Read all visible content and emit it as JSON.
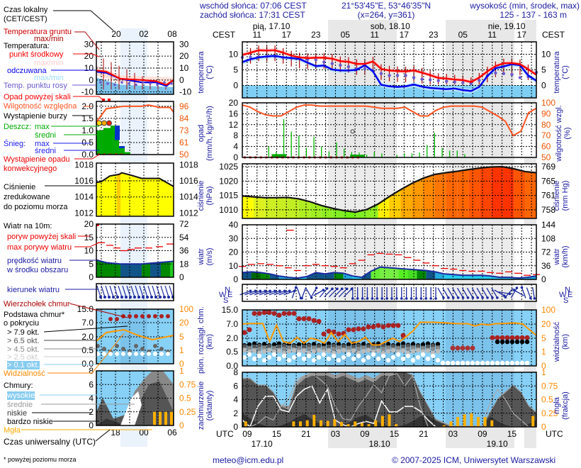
{
  "header": {
    "sunrise": "wschód słońca: 07:06 CEST",
    "sunset": "zachód słońca: 17:31 CEST",
    "coords": "21°53'45\"E, 53°46'35\"N",
    "grid": "(x=264,  y=361)",
    "elev_label": "wysokość (min, środek, max)",
    "elev_values": "125 - 137 - 163 m"
  },
  "time_axis": {
    "local_label": "CEST",
    "utc_label": "UTC",
    "days_local": [
      "pią, 17.10",
      "sob, 18.10",
      "nie, 19.10"
    ],
    "local_ticks": [
      "11",
      "17",
      "23",
      "05",
      "11",
      "17",
      "23",
      "05",
      "11",
      "17"
    ],
    "utc_ticks": [
      "09",
      "15",
      "21",
      "03",
      "09",
      "15",
      "21",
      "03",
      "09",
      "15"
    ],
    "days_utc": [
      "17.10",
      "18.10",
      "19.10"
    ]
  },
  "legend": {
    "local_time": "Czas lokalny",
    "local_time2": "(CET/CEST)",
    "local_ticks": [
      "20",
      "02",
      "08"
    ],
    "ground_temp": "Temperatura gruntu",
    "ground_temp2": "max/min",
    "temperature": "Temperatura:",
    "midpoint": "punkt środkowy",
    "maxmin1": "max/min",
    "felt": "odczuwana",
    "maxmin2": "max/min",
    "dewpoint": "Temp. punktu rosy",
    "temp_ticks": [
      "30",
      "20",
      "10",
      "0",
      "-10"
    ],
    "precip_over": "Opad powyżej skali",
    "humidity": "Wilgotność względna",
    "storm": "Wystąpienie burzy",
    "rain": "Deszcz:",
    "rain_max": "max",
    "rain_avg": "średni",
    "snow": "Śnieg:",
    "snow_max": "max",
    "snow_avg": "średni",
    "convective": "Wystąpienie opadu",
    "convective2": "konwekcyjnego",
    "precip_ticks": [
      "2.0",
      "1.5",
      "1.0",
      "0.5",
      "0.0"
    ],
    "humid_ticks": [
      "96",
      "84",
      "73",
      "61",
      "50"
    ],
    "pressure": "Ciśnienie",
    "pressure2": "zredukowane",
    "pressure3": "do poziomu morza",
    "press_ticks": [
      "1018",
      "1016",
      "1014",
      "1012"
    ],
    "wind": "Wiatr na 10m:",
    "gust_over": "poryw powyżej skali",
    "gust_max": "max porywy wiatru",
    "wind_speed": "prędkość wiatru",
    "wind_speed2": "w środku obszaru",
    "wind_ticks": [
      "20",
      "15",
      "10",
      "5",
      "0"
    ],
    "wind_kmh_ticks": [
      "72",
      "54",
      "36",
      "18",
      "0"
    ],
    "wind_dir": "kierunek wiatru",
    "cloud_top": "Wierzchołek chmur",
    "cloud_base": "Podstawa chmur*",
    "cloud_base2": "o pokryciu",
    "okt": [
      "> 7.9 okt.",
      "> 6.5 okt.",
      "> 4.5 okt.",
      "> 2.5 okt.",
      "> 0.1 okt."
    ],
    "cloud_ticks": [
      "15.0",
      "7.0",
      "2.0",
      "0.5",
      "0.0"
    ],
    "vis_ticks": [
      "100",
      "20",
      "5",
      "1",
      "0"
    ],
    "visibility": "Widzialność",
    "clouds": "Chmury:",
    "high": "wysokie",
    "mid": "średnie",
    "low": "niskie",
    "vlow": "bardzo niskie",
    "fog": "Mgła",
    "cc_ticks": [
      "8",
      "6",
      "4",
      "2",
      "0"
    ],
    "fog_ticks": [
      "1",
      "0.75",
      "0.5",
      "0.25",
      "0"
    ],
    "utc_label": "Czas uniwersalny (UTC)",
    "utc_ticks": [
      "18",
      "00",
      "06"
    ],
    "footnote": "* powyżej poziomu morza"
  },
  "panels": {
    "temp": {
      "ylabel": "temperatura",
      "unit": "(°C)",
      "ticks": [
        "10",
        "5",
        "0"
      ],
      "right_ticks": [
        "10",
        "5",
        "0"
      ]
    },
    "precip": {
      "ylabel": "opad",
      "unit": "(mm/h, kg/m²/h)",
      "ticks": [
        "20",
        "16",
        "12",
        "8",
        "4",
        "0"
      ],
      "right_label": "wilgotność wzgl.",
      "right_unit": "(%)",
      "right_ticks": [
        "100",
        "90",
        "80",
        "70",
        "60",
        "50"
      ]
    },
    "pressure": {
      "ylabel": "ciśnienie",
      "unit": "(hPa)",
      "ticks": [
        "1025",
        "1020",
        "1015",
        "1010"
      ],
      "right_label": "ciśnienie",
      "right_unit": "(mm Hg)",
      "right_ticks": [
        "769",
        "765",
        "761",
        "758"
      ]
    },
    "wind": {
      "ylabel": "wiatr",
      "unit": "(m/s)",
      "ticks": [
        "40",
        "30",
        "20",
        "10",
        "0"
      ],
      "right_label": "wiatr",
      "right_unit": "(km/h)",
      "right_ticks": [
        "144",
        "108",
        "72",
        "36",
        "0"
      ]
    },
    "winddir": {
      "compass": [
        "N",
        "W",
        "E",
        "S"
      ]
    },
    "cloud": {
      "ylabel": "pion. rozciągł. chm.",
      "unit": "(km)",
      "ticks": [
        "15.0",
        "7.0",
        "2.0",
        "0.5",
        "0.0"
      ],
      "right_label": "widzialność",
      "right_unit": "(km)",
      "right_ticks": [
        "100",
        "20",
        "5",
        "1",
        "0"
      ]
    },
    "cover": {
      "ylabel": "zachmurzenie",
      "unit": "(oktanty)",
      "ticks": [
        "8",
        "6",
        "4",
        "2",
        "0"
      ],
      "right_label": "mgła",
      "right_unit": "(frakcja)",
      "right_ticks": [
        "1",
        "0.75",
        "0.5",
        "0.25",
        "0"
      ]
    }
  },
  "footer": {
    "email": "meteo@icm.edu.pl",
    "copyright": "© 2007-2025 ICM, Uniwersytet Warszawski"
  },
  "chart_data": [
    {
      "type": "line",
      "title": "temperatura (°C)",
      "x_hours_utc_from": "2025-10-17 06",
      "ylim": [
        -4,
        14
      ],
      "series": [
        {
          "name": "temperatura",
          "color": "#ff0000",
          "values": [
            9.8,
            10.5,
            11.3,
            11.2,
            11.3,
            10.5,
            9.6,
            9.0,
            8.8,
            8.9,
            8.9,
            8.6,
            7.8,
            7.6,
            6.9,
            6.9,
            7.7,
            5.3,
            4.8,
            4.6,
            4.5,
            4.8,
            4.1,
            3.3,
            2.4,
            2.2,
            1.9,
            1.7,
            1.1,
            2.5,
            4.5,
            6.2,
            7.1,
            7.2,
            6.8,
            5.2,
            3.4
          ]
        },
        {
          "name": "temperatura odczuwana",
          "color": "#0000ee",
          "values": [
            7.5,
            8.4,
            9.0,
            9.3,
            9.5,
            9.0,
            8.8,
            8.5,
            7.3,
            6.2,
            6.4,
            5.1,
            4.8,
            4.8,
            5.0,
            6.5,
            4.5,
            0.2,
            -0.3,
            -0.5,
            -0.3,
            0.3,
            -0.4,
            -0.8,
            -1.0,
            -1.2,
            -1.0,
            -1.5,
            -1.8,
            -0.5,
            3.0,
            5.5,
            6.1,
            6.8,
            6.5,
            3.2,
            1.5
          ]
        },
        {
          "name": "temp. punktu rosy",
          "color": "#6a5acd",
          "values": [
            9.0,
            9.1,
            9.2,
            9.3,
            9.2,
            9.0,
            8.8,
            8.7,
            8.4,
            8.2,
            7.5,
            7.0,
            6.5,
            6.0,
            5.3,
            5.3,
            4.8,
            3.8,
            3.2,
            3.2,
            3.2,
            2.5,
            2.0,
            1.8,
            1.5,
            1.3,
            1.1,
            0.9,
            0.6,
            1.6,
            3.1,
            4.0,
            3.8,
            3.5,
            2.5,
            2.8,
            4.2
          ]
        }
      ]
    },
    {
      "type": "bar",
      "title": "opad (mm/h) / wilgotność wzgl. (%)",
      "ylim": [
        0,
        20
      ],
      "y2lim": [
        50,
        100
      ],
      "series": [
        {
          "name": "wilgotność względna",
          "color": "#ff5522",
          "values": [
            98,
            96,
            92,
            89,
            88,
            88,
            92,
            96,
            98,
            98,
            97,
            97,
            97,
            97,
            97,
            97,
            97,
            96,
            95,
            95,
            95,
            96,
            92,
            88,
            88,
            93,
            96,
            97,
            97,
            97,
            97,
            96,
            92,
            88,
            83,
            70,
            74,
            91,
            95
          ]
        },
        {
          "name": "opad max",
          "color": "#00aa00",
          "values": [
            0,
            0,
            0,
            4,
            2,
            14,
            9.5,
            8,
            3.5,
            7.5,
            4,
            2.2,
            5.5,
            3.2,
            2,
            1.8,
            1,
            2,
            1.5,
            0,
            1,
            1.5,
            1.5,
            1.8,
            4.5,
            9,
            3.5,
            2.5,
            2.5,
            1.2,
            0,
            0,
            0,
            0,
            0,
            0,
            0,
            0,
            0
          ]
        }
      ]
    },
    {
      "type": "area",
      "title": "ciśnienie (hPa)",
      "ylim": [
        1007,
        1026
      ],
      "series": [
        {
          "name": "ciśnienie",
          "values": [
            1014.8,
            1014.5,
            1014.2,
            1014.2,
            1014.3,
            1013.8,
            1012.8,
            1011.5,
            1010.5,
            1009.7,
            1009.2,
            1010.1,
            1012.0,
            1014.6,
            1017.0,
            1019.2,
            1021.0,
            1022.3,
            1022.9,
            1023.4,
            1024.0,
            1024.5,
            1024.9,
            1025.0,
            1024.3,
            1023.3,
            1022.9
          ]
        }
      ]
    },
    {
      "type": "area",
      "title": "wiatr (m/s)",
      "ylim": [
        0,
        40
      ],
      "series": [
        {
          "name": "max porywy wiatru",
          "color": "#ee0000",
          "values": [
            9.5,
            11,
            11.5,
            11,
            10,
            8.5,
            6.5,
            10,
            11,
            10,
            9.5,
            8.5,
            11.5,
            14,
            18,
            19,
            18.5,
            18,
            16,
            14,
            12,
            10,
            8,
            7.5,
            6.5,
            6,
            6,
            5,
            4.5,
            5.5,
            4.5,
            3,
            3.5
          ]
        },
        {
          "name": "prędkość wiatru",
          "color": "#003399",
          "values": [
            5,
            5.5,
            5,
            4,
            2.5,
            1.5,
            1,
            2,
            5,
            4,
            5,
            4.5,
            2.5,
            1.5,
            6,
            9,
            8.5,
            8,
            7.5,
            7,
            6.5,
            5.5,
            4,
            3.5,
            3,
            3,
            3,
            2.5,
            1.5,
            1.5,
            1,
            1.5,
            2.5
          ]
        }
      ]
    },
    {
      "type": "scatter",
      "title": "pion. rozciągł. chm. (km) / widzialność (km)",
      "series": [
        {
          "name": "widzialność",
          "color": "#ff9900",
          "values": [
            20,
            23,
            23,
            23,
            4,
            19,
            4,
            3.5,
            6,
            3.5,
            5,
            4.5,
            3.5,
            11,
            4,
            9,
            3.5,
            4,
            6,
            3,
            3,
            4,
            5,
            4,
            7,
            13,
            30,
            30,
            30,
            28,
            26,
            23,
            22,
            22,
            18,
            20,
            19,
            22,
            23,
            25,
            26,
            20,
            14,
            8
          ]
        }
      ]
    },
    {
      "type": "area",
      "title": "zachmurzenie (oktanty) / mgła (frakcja)",
      "ylim": [
        0,
        8
      ],
      "y2lim": [
        0,
        1
      ],
      "series": [
        {
          "name": "chmury niskie",
          "color": "#444444",
          "values": [
            7,
            7,
            6,
            6,
            5,
            3,
            2.5,
            6,
            7,
            7.5,
            7.5,
            7.5,
            7,
            7.5,
            7,
            6.5,
            7,
            6.5,
            7.5,
            7.5,
            8,
            8,
            7.5,
            5,
            3,
            1,
            0.5,
            0,
            0,
            0,
            0,
            0,
            2,
            4,
            5,
            6,
            5,
            3,
            2
          ]
        },
        {
          "name": "mgła",
          "color": "#ffaa00",
          "values": [
            0.1,
            0,
            0,
            0,
            0,
            0,
            0,
            0.1,
            0.1,
            0.12,
            0.22,
            0.12,
            0.11,
            0.14,
            0.09,
            0.05,
            0.1,
            0.07,
            0.05,
            0.12,
            0.2,
            0.23,
            0.05,
            0,
            0,
            0,
            0,
            0,
            0,
            0.03,
            0.1,
            0.18,
            0.23,
            0.25,
            0.18,
            0.18,
            0.12,
            0,
            0,
            0,
            0,
            0,
            0.2
          ]
        }
      ]
    }
  ]
}
